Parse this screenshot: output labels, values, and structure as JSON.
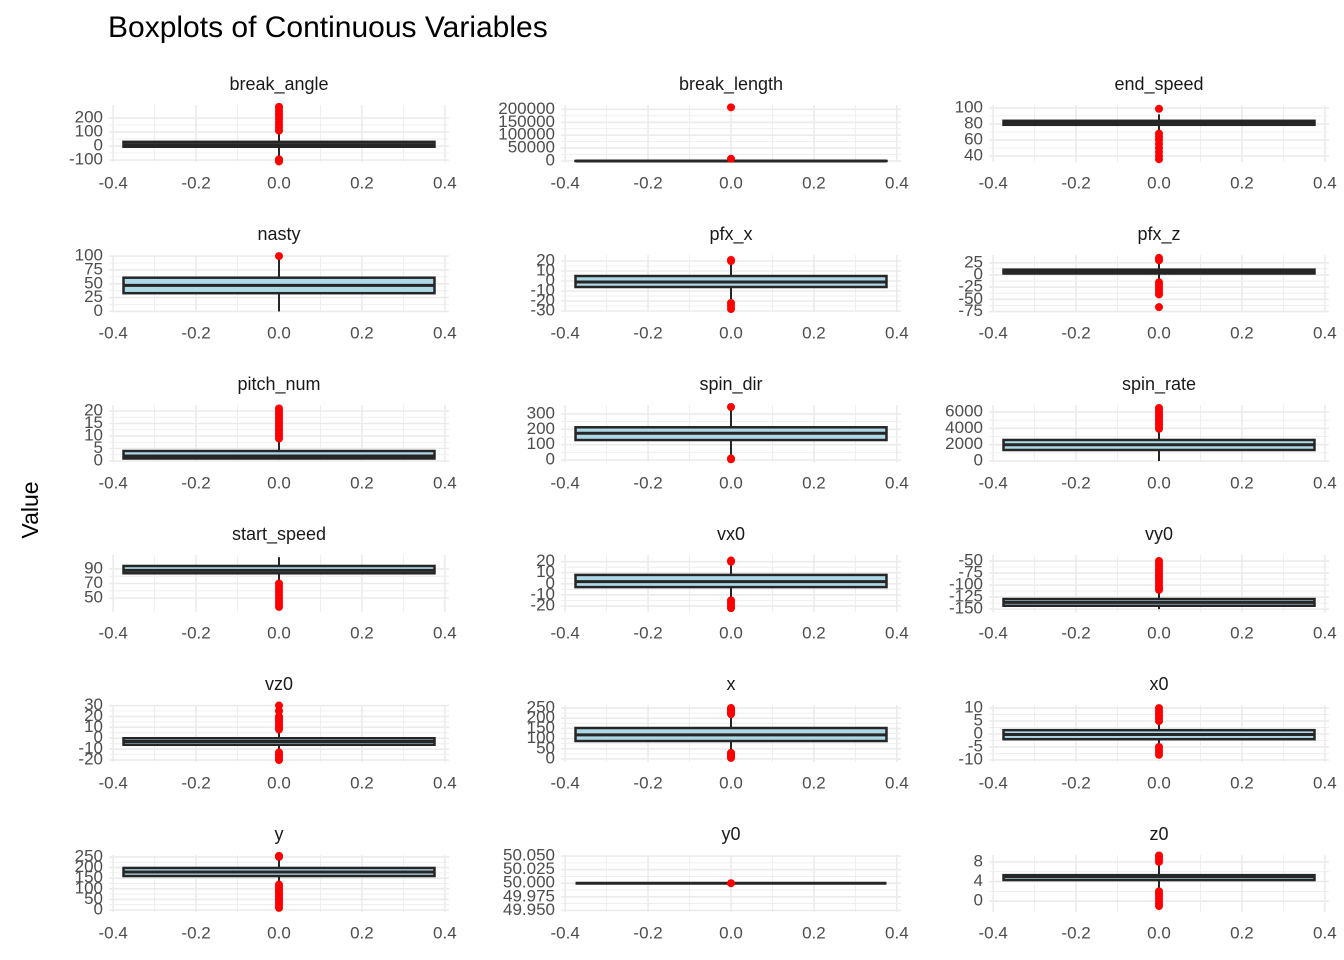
{
  "title": "Boxplots of Continuous Variables",
  "y_label": "Value",
  "colors": {
    "box": "#add8e6",
    "line": "#262626",
    "outlier": "#ff0000",
    "grid": "#ebebeb"
  },
  "chart_data": [
    {
      "type": "box",
      "title": "break_angle",
      "xlim": [
        -0.41,
        0.41
      ],
      "xticks": [
        -0.4,
        -0.2,
        {
          "value": 0,
          "label": "0.0"
        },
        0.2,
        0.4
      ],
      "ylim": [
        -114,
        293
      ],
      "yticks": [
        -100,
        0,
        100,
        200
      ],
      "box_width": 0.75,
      "whisker_low": -80,
      "q1": -5,
      "median": 10,
      "q3": 30,
      "whisker_high": 100,
      "outliers": [
        110,
        130,
        150,
        170,
        190,
        210,
        230,
        250,
        270,
        280,
        -95,
        -105,
        -110
      ]
    },
    {
      "type": "box",
      "title": "break_length",
      "xlim": [
        -0.41,
        0.41
      ],
      "xticks": [
        -0.4,
        -0.2,
        {
          "value": 0,
          "label": "0.0"
        },
        0.2,
        0.4
      ],
      "ylim": [
        -4000,
        217000
      ],
      "yticks": [
        0,
        50000,
        100000,
        150000,
        200000
      ],
      "box_width": 0.75,
      "whisker_low": 0,
      "q1": 2,
      "median": 5,
      "q3": 9,
      "whisker_high": 20,
      "outliers": [
        8500,
        208000
      ]
    },
    {
      "type": "box",
      "title": "end_speed",
      "xlim": [
        -0.41,
        0.41
      ],
      "xticks": [
        -0.4,
        -0.2,
        {
          "value": 0,
          "label": "0.0"
        },
        0.2,
        0.4
      ],
      "ylim": [
        32.5,
        103.75
      ],
      "yticks": [
        40,
        60,
        80,
        100
      ],
      "box_width": 0.75,
      "whisker_low": 72,
      "q1": 79,
      "median": 82,
      "q3": 84,
      "whisker_high": 92,
      "outliers": [
        99,
        68,
        64,
        60,
        55,
        50,
        45,
        40,
        36
      ]
    },
    {
      "type": "box",
      "title": "nasty",
      "xlim": [
        -0.41,
        0.41
      ],
      "xticks": [
        -0.4,
        -0.2,
        {
          "value": 0,
          "label": "0.0"
        },
        0.2,
        0.4
      ],
      "ylim": [
        -1,
        102
      ],
      "yticks": [
        0,
        25,
        50,
        75,
        100
      ],
      "box_width": 0.75,
      "whisker_low": 0,
      "q1": 33,
      "median": 47,
      "q3": 61,
      "whisker_high": 98,
      "outliers": [
        100
      ]
    },
    {
      "type": "box",
      "title": "pfx_x",
      "xlim": [
        -0.41,
        0.41
      ],
      "xticks": [
        -0.4,
        -0.2,
        {
          "value": 0,
          "label": "0.0"
        },
        0.2,
        0.4
      ],
      "ylim": [
        -31,
        26
      ],
      "yticks": [
        -30,
        -20,
        -10,
        0,
        10,
        20
      ],
      "box_width": 0.75,
      "whisker_low": -18,
      "q1": -6,
      "median": -1,
      "q3": 5,
      "whisker_high": 18,
      "outliers": [
        20,
        21,
        -22,
        -25,
        -28
      ]
    },
    {
      "type": "box",
      "title": "pfx_z",
      "xlim": [
        -0.41,
        0.41
      ],
      "xticks": [
        -0.4,
        -0.2,
        {
          "value": 0,
          "label": "0.0"
        },
        0.2,
        0.4
      ],
      "ylim": [
        -76,
        41
      ],
      "yticks": [
        -75,
        -50,
        -25,
        0,
        25
      ],
      "box_width": 0.75,
      "whisker_low": -10,
      "q1": 3,
      "median": 7,
      "q3": 11,
      "whisker_high": 25,
      "outliers": [
        30,
        35,
        -15,
        -20,
        -25,
        -30,
        -35,
        -40,
        -66
      ]
    },
    {
      "type": "box",
      "title": "pitch_num",
      "xlim": [
        -0.41,
        0.41
      ],
      "xticks": [
        -0.4,
        -0.2,
        {
          "value": 0,
          "label": "0.0"
        },
        0.2,
        0.4
      ],
      "ylim": [
        -0.4,
        22.4
      ],
      "yticks": [
        0,
        5,
        10,
        15,
        20
      ],
      "box_width": 0.75,
      "whisker_low": 1,
      "q1": 1,
      "median": 2,
      "q3": 4,
      "whisker_high": 8,
      "outliers": [
        9,
        10,
        11,
        12,
        13,
        14,
        15,
        16,
        17,
        18,
        19,
        20,
        21
      ]
    },
    {
      "type": "box",
      "title": "spin_dir",
      "xlim": [
        -0.41,
        0.41
      ],
      "xticks": [
        -0.4,
        -0.2,
        {
          "value": 0,
          "label": "0.0"
        },
        0.2,
        0.4
      ],
      "ylim": [
        -13,
        358
      ],
      "yticks": [
        0,
        100,
        200,
        300
      ],
      "box_width": 0.75,
      "whisker_low": 35,
      "q1": 130,
      "median": 174,
      "q3": 213,
      "whisker_high": 330,
      "outliers": [
        345,
        5,
        10
      ]
    },
    {
      "type": "box",
      "title": "spin_rate",
      "xlim": [
        -0.41,
        0.41
      ],
      "xticks": [
        -0.4,
        -0.2,
        {
          "value": 0,
          "label": "0.0"
        },
        0.2,
        0.4
      ],
      "ylim": [
        -120,
        6860
      ],
      "yticks": [
        0,
        2000,
        4000,
        6000
      ],
      "box_width": 0.75,
      "whisker_low": 0,
      "q1": 1350,
      "median": 2000,
      "q3": 2580,
      "whisker_high": 3800,
      "outliers": [
        3950,
        4200,
        4500,
        4800,
        5100,
        5400,
        5700,
        6000,
        6300,
        6500
      ]
    },
    {
      "type": "box",
      "title": "start_speed",
      "xlim": [
        -0.41,
        0.41
      ],
      "xticks": [
        -0.4,
        -0.2,
        {
          "value": 0,
          "label": "0.0"
        },
        0.2,
        0.4
      ],
      "ylim": [
        31,
        109
      ],
      "yticks": [
        50,
        70,
        90
      ],
      "box_width": 0.75,
      "whisker_low": 72,
      "q1": 84,
      "median": 88,
      "q3": 94,
      "whisker_high": 106,
      "outliers": [
        70,
        66,
        62,
        58,
        54,
        50,
        46,
        42,
        38
      ]
    },
    {
      "type": "box",
      "title": "vx0",
      "xlim": [
        -0.41,
        0.41
      ],
      "xticks": [
        -0.4,
        -0.2,
        {
          "value": 0,
          "label": "0.0"
        },
        0.2,
        0.4
      ],
      "ylim": [
        -25.5,
        26
      ],
      "yticks": [
        -20,
        -10,
        0,
        10,
        20
      ],
      "box_width": 0.75,
      "whisker_low": -13,
      "q1": -3,
      "median": 2,
      "q3": 8,
      "whisker_high": 18,
      "outliers": [
        20,
        21,
        -15,
        -17,
        -19,
        -21,
        -22
      ]
    },
    {
      "type": "box",
      "title": "vy0",
      "xlim": [
        -0.41,
        0.41
      ],
      "xticks": [
        -0.4,
        -0.2,
        {
          "value": 0,
          "label": "0.0"
        },
        0.2,
        0.4
      ],
      "ylim": [
        -156,
        -37.5
      ],
      "yticks": [
        -150,
        -125,
        -100,
        -75,
        -50
      ],
      "box_width": 0.75,
      "whisker_low": -150,
      "q1": -143,
      "median": -136,
      "q3": -129,
      "whisker_high": -115,
      "outliers": [
        -50,
        -55,
        -60,
        -65,
        -70,
        -75,
        -80,
        -85,
        -90,
        -95,
        -100,
        -105,
        -110
      ]
    },
    {
      "type": "box",
      "title": "vz0",
      "xlim": [
        -0.41,
        0.41
      ],
      "xticks": [
        -0.4,
        -0.2,
        {
          "value": 0,
          "label": "0.0"
        },
        0.2,
        0.4
      ],
      "ylim": [
        -21.8,
        30.5
      ],
      "yticks": [
        -20,
        -10,
        0,
        10,
        20,
        30
      ],
      "box_width": 0.75,
      "whisker_low": -12,
      "q1": -6,
      "median": -3,
      "q3": 0,
      "whisker_high": 7,
      "outliers": [
        8,
        10,
        12,
        14,
        16,
        18,
        20,
        25,
        30,
        -13,
        -15,
        -17,
        -19,
        -20
      ]
    },
    {
      "type": "box",
      "title": "x",
      "xlim": [
        -0.41,
        0.41
      ],
      "xticks": [
        -0.4,
        -0.2,
        {
          "value": 0,
          "label": "0.0"
        },
        0.2,
        0.4
      ],
      "ylim": [
        -15,
        265
      ],
      "yticks": [
        0,
        50,
        100,
        150,
        200,
        250
      ],
      "box_width": 0.75,
      "whisker_low": 34,
      "q1": 88,
      "median": 118,
      "q3": 152,
      "whisker_high": 216,
      "outliers": [
        5,
        10,
        15,
        20,
        25,
        30,
        220,
        225,
        230,
        235,
        240,
        245,
        250
      ]
    },
    {
      "type": "box",
      "title": "x0",
      "xlim": [
        -0.41,
        0.41
      ],
      "xticks": [
        -0.4,
        -0.2,
        {
          "value": 0,
          "label": "0.0"
        },
        0.2,
        0.4
      ],
      "ylim": [
        -10.8,
        11.2
      ],
      "yticks": [
        -10,
        -5,
        0,
        5,
        10
      ],
      "box_width": 0.75,
      "whisker_low": -4.5,
      "q1": -2,
      "median": -0.2,
      "q3": 1.5,
      "whisker_high": 4.5,
      "outliers": [
        5,
        6,
        7,
        8,
        9,
        10,
        -5,
        -6,
        -7,
        -8
      ]
    },
    {
      "type": "box",
      "title": "y",
      "xlim": [
        -0.41,
        0.41
      ],
      "xticks": [
        -0.4,
        -0.2,
        {
          "value": 0,
          "label": "0.0"
        },
        0.2,
        0.4
      ],
      "ylim": [
        -9.4,
        259
      ],
      "yticks": [
        0,
        50,
        100,
        150,
        200,
        250
      ],
      "box_width": 0.75,
      "whisker_low": 130,
      "q1": 160,
      "median": 179,
      "q3": 198,
      "whisker_high": 240,
      "outliers": [
        10,
        20,
        30,
        40,
        50,
        60,
        70,
        80,
        90,
        100,
        110,
        120,
        250,
        255
      ]
    },
    {
      "type": "box",
      "title": "y0",
      "xlim": [
        -0.41,
        0.41
      ],
      "xticks": [
        -0.4,
        -0.2,
        {
          "value": 0,
          "label": "0.0"
        },
        0.2,
        0.4
      ],
      "ylim": [
        49.947,
        50.052
      ],
      "yticks": [
        {
          "value": 49.95,
          "label": "49.950"
        },
        {
          "value": 49.975,
          "label": "49.975"
        },
        {
          "value": 50,
          "label": "50.000"
        },
        {
          "value": 50.025,
          "label": "50.025"
        },
        {
          "value": 50.05,
          "label": "50.050"
        }
      ],
      "box_width": 0.75,
      "whisker_low": 50,
      "q1": 50,
      "median": 50,
      "q3": 50,
      "whisker_high": 50,
      "outliers": [
        50
      ]
    },
    {
      "type": "box",
      "title": "z0",
      "xlim": [
        -0.41,
        0.41
      ],
      "xticks": [
        -0.4,
        -0.2,
        {
          "value": 0,
          "label": "0.0"
        },
        0.2,
        0.4
      ],
      "ylim": [
        -2.2,
        9.4
      ],
      "yticks": [
        0,
        4,
        8
      ],
      "box_width": 0.75,
      "whisker_low": 2.5,
      "q1": 4.3,
      "median": 5,
      "q3": 5.3,
      "whisker_high": 7.5,
      "outliers": [
        8,
        8.5,
        9,
        9.3,
        -1,
        -0.5,
        0,
        0.5,
        1,
        1.5,
        2
      ]
    }
  ]
}
